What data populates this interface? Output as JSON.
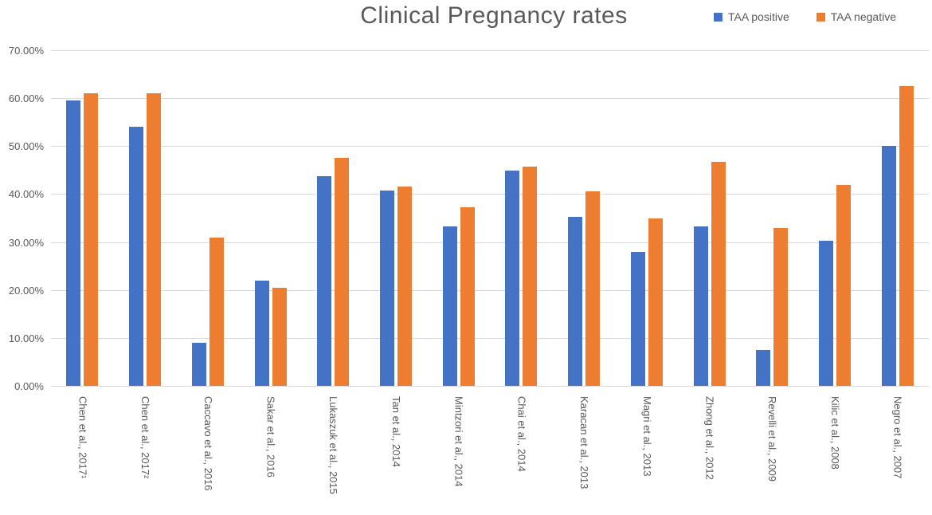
{
  "chart_data": {
    "type": "bar",
    "title": "Clinical Pregnancy rates",
    "xlabel": "",
    "ylabel": "",
    "ylim": [
      0,
      70
    ],
    "grid": "horizontal",
    "legend_position": "top-right",
    "text_color": "#595959",
    "gridline_color": "#d9d9d9",
    "y_ticks": [
      "70.00%",
      "60.00%",
      "50.00%",
      "40.00%",
      "30.00%",
      "20.00%",
      "10.00%",
      "0.00%"
    ],
    "categories": [
      "Chen et al., 2017¹",
      "Chen et al., 2017²",
      "Caccavo et al., 2016",
      "Sakar et al., 2016",
      "Lukaszuk et al., 2015",
      "Tan et al., 2014",
      "Mintzori et al., 2014",
      "Chai et al., 2014",
      "Karacan et al., 2013",
      "Magri et al., 2013",
      "Zhong et al., 2012",
      "Revelli et al., 2009",
      "Kilic et al., 2008",
      "Negro et al., 2007"
    ],
    "series": [
      {
        "name": "TAA positive",
        "color": "#4472C4",
        "values": [
          59.6,
          54.1,
          9.0,
          21.9,
          43.8,
          40.8,
          33.3,
          44.9,
          35.3,
          28.0,
          33.3,
          7.5,
          30.3,
          50.0
        ]
      },
      {
        "name": "TAA negative",
        "color": "#ED7D31",
        "values": [
          61.0,
          61.0,
          31.0,
          20.5,
          47.6,
          41.5,
          37.3,
          45.8,
          40.6,
          35.0,
          46.7,
          33.0,
          41.9,
          62.5
        ]
      }
    ]
  }
}
